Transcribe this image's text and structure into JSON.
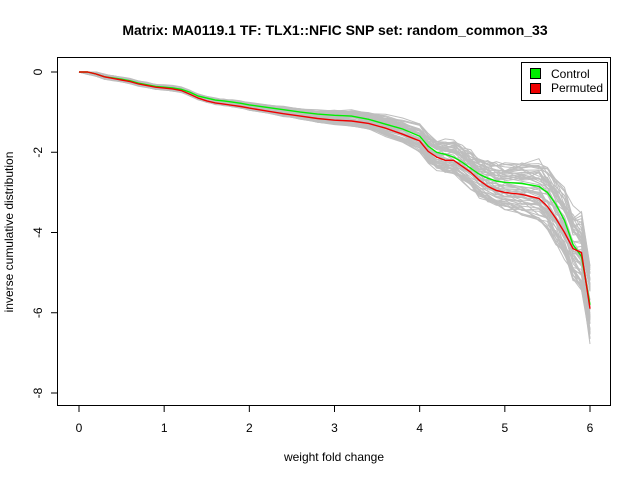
{
  "chart_data": {
    "type": "line",
    "title": "Matrix: MA0119.1 TF: TLX1::NFIC SNP set: random_common_33",
    "xlabel": "weight fold change",
    "ylabel": "inverse cumulative distribution",
    "xlim": [
      0,
      6
    ],
    "ylim": [
      -8,
      0
    ],
    "x_ticks": [
      "0",
      "1",
      "2",
      "3",
      "4",
      "5",
      "6"
    ],
    "y_ticks": [
      "0",
      "-2",
      "-4",
      "-6",
      "-8"
    ],
    "x_tick_values": [
      0,
      1,
      2,
      3,
      4,
      5,
      6
    ],
    "y_tick_values": [
      0,
      -2,
      -4,
      -6,
      -8
    ],
    "legend": {
      "position": "top-right",
      "entries": [
        {
          "label": "Control",
          "color": "#00ee00"
        },
        {
          "label": "Permuted",
          "color": "#ee0000"
        }
      ]
    },
    "background_series_color": "#bebebe",
    "series": [
      {
        "name": "Control",
        "color": "#00ee00",
        "x": [
          0,
          0.1,
          0.2,
          0.3,
          0.4,
          0.5,
          0.6,
          0.7,
          0.8,
          0.9,
          1.0,
          1.1,
          1.2,
          1.3,
          1.4,
          1.5,
          1.6,
          1.7,
          1.8,
          1.9,
          2.0,
          2.2,
          2.4,
          2.6,
          2.8,
          3.0,
          3.2,
          3.4,
          3.6,
          3.8,
          4.0,
          4.1,
          4.2,
          4.3,
          4.4,
          4.5,
          4.6,
          4.7,
          4.8,
          4.9,
          5.0,
          5.2,
          5.4,
          5.5,
          5.6,
          5.7,
          5.8,
          5.9,
          6.0
        ],
        "values": [
          0,
          0,
          -0.05,
          -0.12,
          -0.15,
          -0.18,
          -0.22,
          -0.28,
          -0.32,
          -0.36,
          -0.38,
          -0.4,
          -0.43,
          -0.5,
          -0.6,
          -0.65,
          -0.7,
          -0.72,
          -0.75,
          -0.78,
          -0.82,
          -0.88,
          -0.94,
          -1.0,
          -1.05,
          -1.08,
          -1.1,
          -1.18,
          -1.3,
          -1.42,
          -1.6,
          -1.85,
          -2.0,
          -2.05,
          -2.12,
          -2.25,
          -2.4,
          -2.55,
          -2.65,
          -2.72,
          -2.75,
          -2.78,
          -2.85,
          -3.0,
          -3.3,
          -3.7,
          -4.3,
          -4.6,
          -5.8
        ]
      },
      {
        "name": "Permuted",
        "color": "#ee0000",
        "x": [
          0,
          0.1,
          0.2,
          0.3,
          0.4,
          0.5,
          0.6,
          0.7,
          0.8,
          0.9,
          1.0,
          1.1,
          1.2,
          1.3,
          1.4,
          1.5,
          1.6,
          1.7,
          1.8,
          1.9,
          2.0,
          2.2,
          2.4,
          2.6,
          2.8,
          3.0,
          3.2,
          3.4,
          3.6,
          3.8,
          4.0,
          4.1,
          4.2,
          4.3,
          4.4,
          4.5,
          4.6,
          4.7,
          4.8,
          4.9,
          5.0,
          5.2,
          5.4,
          5.5,
          5.6,
          5.7,
          5.8,
          5.9,
          6.0
        ],
        "values": [
          0,
          0,
          -0.05,
          -0.12,
          -0.16,
          -0.2,
          -0.24,
          -0.3,
          -0.34,
          -0.38,
          -0.4,
          -0.42,
          -0.46,
          -0.55,
          -0.65,
          -0.72,
          -0.77,
          -0.8,
          -0.83,
          -0.86,
          -0.9,
          -0.97,
          -1.04,
          -1.1,
          -1.16,
          -1.2,
          -1.22,
          -1.28,
          -1.4,
          -1.55,
          -1.72,
          -1.98,
          -2.12,
          -2.2,
          -2.2,
          -2.35,
          -2.5,
          -2.7,
          -2.85,
          -2.95,
          -3.0,
          -3.05,
          -3.15,
          -3.35,
          -3.65,
          -4.0,
          -4.4,
          -4.5,
          -5.9
        ]
      }
    ]
  }
}
